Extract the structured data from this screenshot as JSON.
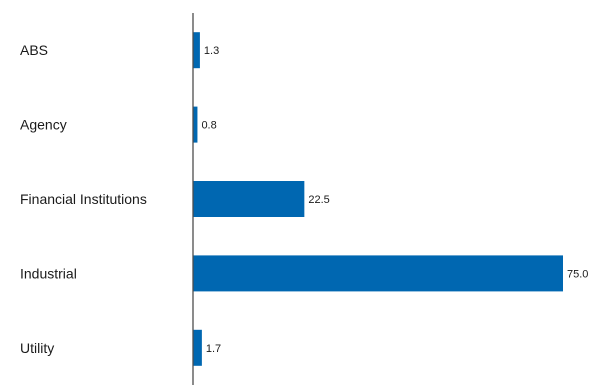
{
  "chart_data": {
    "type": "bar",
    "orientation": "horizontal",
    "categories": [
      "ABS",
      "Agency",
      "Financial Institutions",
      "Industrial",
      "Utility"
    ],
    "values": [
      1.3,
      0.8,
      22.5,
      75.0,
      1.7
    ],
    "value_labels": [
      "1.3",
      "0.8",
      "22.5",
      "75.0",
      "1.7"
    ],
    "xlim": [
      0,
      75.0
    ],
    "title": "",
    "xlabel": "",
    "ylabel": "",
    "grid": false,
    "legend": "none",
    "bar_color": "#0067b1",
    "axis_color": "#4d4d4d"
  }
}
